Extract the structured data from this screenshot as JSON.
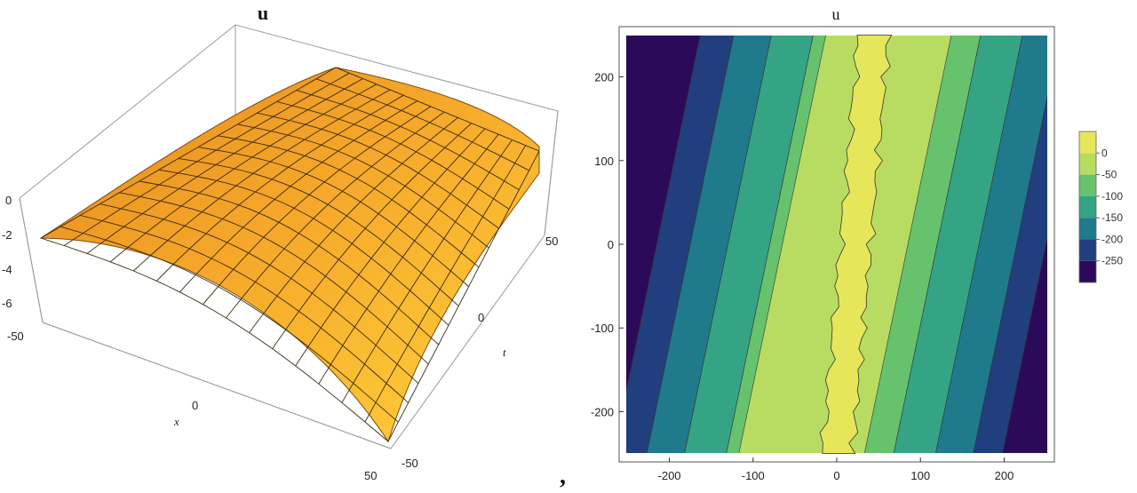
{
  "separator": ",",
  "chart_data": [
    {
      "type": "surface3d",
      "title": "u",
      "xlabel": "x",
      "ylabel": "t",
      "zlabel": "",
      "x_ticks": [
        "-50",
        "0",
        "50"
      ],
      "t_ticks": [
        "-50",
        "0",
        "50"
      ],
      "z_ticks": [
        "0",
        "-2",
        "-4",
        "-6"
      ],
      "xlim": [
        -50,
        50
      ],
      "tlim": [
        -50,
        50
      ],
      "zlim": [
        -7,
        0
      ],
      "mesh": "15x15",
      "surface_color": "#f6b62a",
      "mesh_color": "#3a2a10",
      "surface_shape": "u(x,t) ≈ 0 along ridge x ≈ t, falling toward ≈ -7 at far corners"
    },
    {
      "type": "contour",
      "title": "u",
      "xlim": [
        -260,
        260
      ],
      "ylim": [
        -260,
        260
      ],
      "x_ticks": [
        "-200",
        "-100",
        "0",
        "100",
        "200"
      ],
      "y_ticks": [
        "-200",
        "-100",
        "0",
        "100",
        "200"
      ],
      "levels": [
        -250,
        -200,
        -150,
        -100,
        -50,
        0
      ],
      "legend_ticks": [
        "0",
        "-50",
        "-100",
        "-150",
        "-200",
        "-250"
      ],
      "legend_placement": "right",
      "colors": [
        "#2b0a5a",
        "#213f7e",
        "#1f7a8c",
        "#34a485",
        "#66c26d",
        "#b8dc62",
        "#e6e65a"
      ],
      "ridge_line": {
        "x_at_bottom": 0,
        "x_at_top": 45
      }
    }
  ]
}
